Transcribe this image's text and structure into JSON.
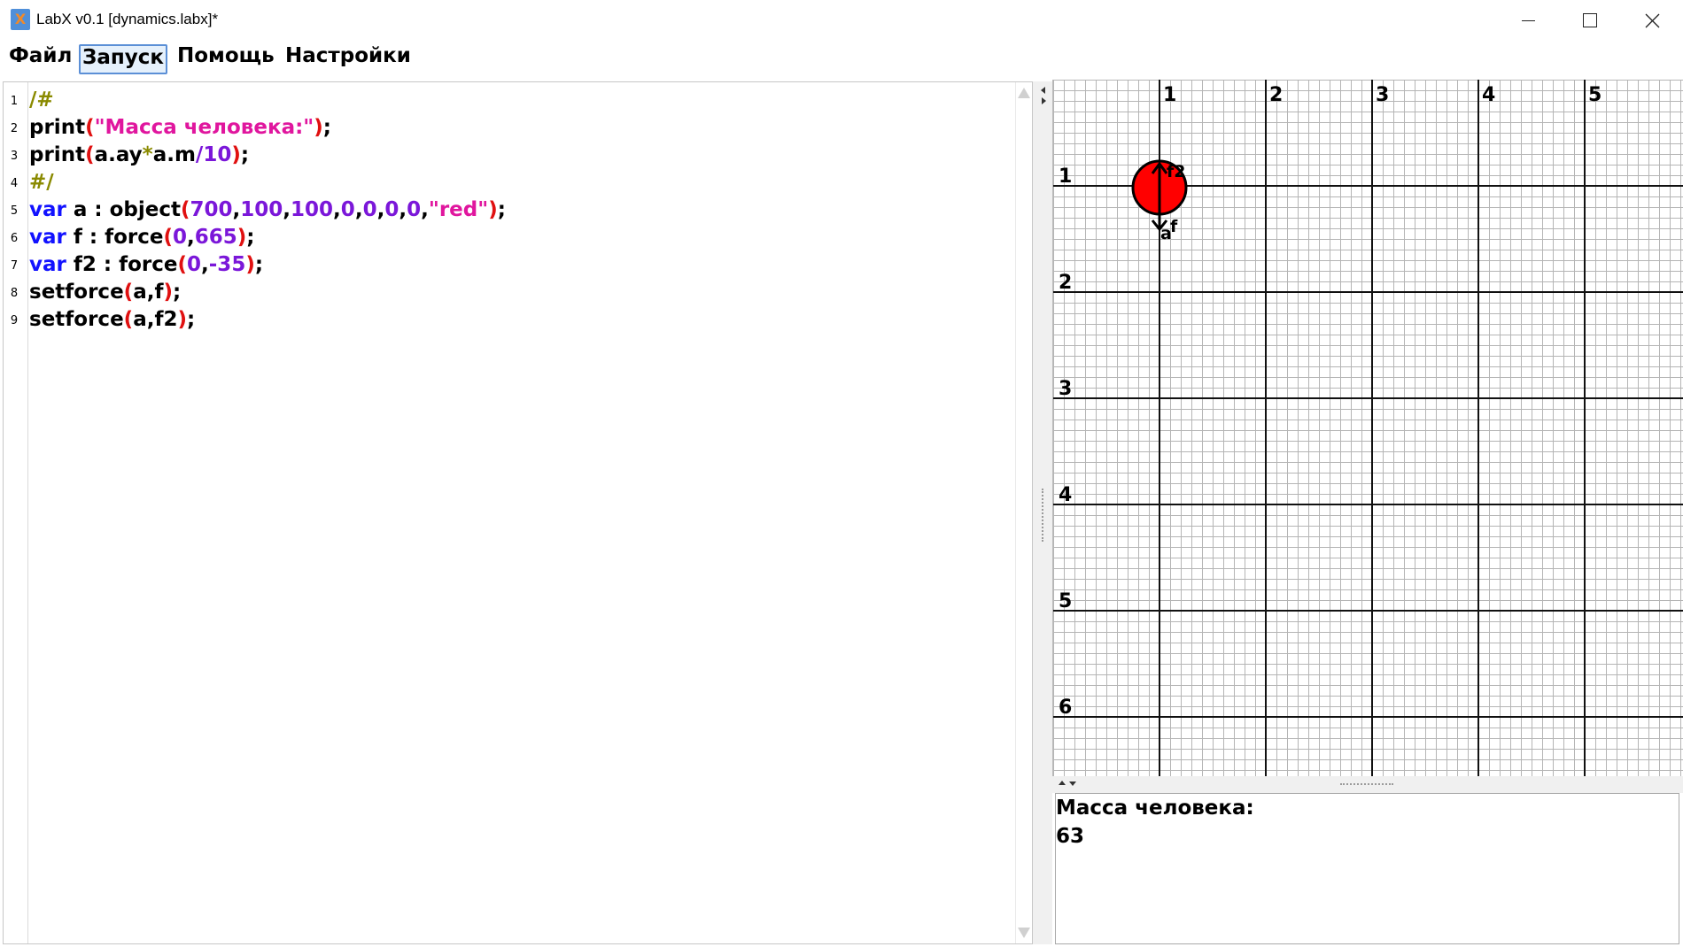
{
  "window": {
    "title": "LabX v0.1 [dynamics.labx]*",
    "icon": "labx-app-icon"
  },
  "menu": {
    "file": "Файл",
    "run": "Запуск",
    "help": "Помощь",
    "settings": "Настройки"
  },
  "editor": {
    "lines": [
      {
        "n": "1",
        "tokens": [
          {
            "t": "/#",
            "c": "cm"
          }
        ]
      },
      {
        "n": "2",
        "tokens": [
          {
            "t": "print",
            "c": "id"
          },
          {
            "t": "(",
            "c": "par"
          },
          {
            "t": "\"Масса человека:\"",
            "c": "str"
          },
          {
            "t": ")",
            "c": "par"
          },
          {
            "t": ";",
            "c": "pun"
          }
        ]
      },
      {
        "n": "3",
        "tokens": [
          {
            "t": "print",
            "c": "id"
          },
          {
            "t": "(",
            "c": "par"
          },
          {
            "t": "a.ay",
            "c": "id"
          },
          {
            "t": "*",
            "c": "cm"
          },
          {
            "t": "a.m",
            "c": "id"
          },
          {
            "t": "/",
            "c": "num"
          },
          {
            "t": "10",
            "c": "num"
          },
          {
            "t": ")",
            "c": "par"
          },
          {
            "t": ";",
            "c": "pun"
          }
        ]
      },
      {
        "n": "4",
        "tokens": [
          {
            "t": "#/",
            "c": "cm"
          }
        ]
      },
      {
        "n": "5",
        "tokens": [
          {
            "t": "var",
            "c": "kw"
          },
          {
            "t": " a : object",
            "c": "id"
          },
          {
            "t": "(",
            "c": "par"
          },
          {
            "t": "700",
            "c": "num"
          },
          {
            "t": ",",
            "c": "pun"
          },
          {
            "t": "100",
            "c": "num"
          },
          {
            "t": ",",
            "c": "pun"
          },
          {
            "t": "100",
            "c": "num"
          },
          {
            "t": ",",
            "c": "pun"
          },
          {
            "t": "0",
            "c": "num"
          },
          {
            "t": ",",
            "c": "pun"
          },
          {
            "t": "0",
            "c": "num"
          },
          {
            "t": ",",
            "c": "pun"
          },
          {
            "t": "0",
            "c": "num"
          },
          {
            "t": ",",
            "c": "pun"
          },
          {
            "t": "0",
            "c": "num"
          },
          {
            "t": ",",
            "c": "pun"
          },
          {
            "t": "\"red\"",
            "c": "str"
          },
          {
            "t": ")",
            "c": "par"
          },
          {
            "t": ";",
            "c": "pun"
          }
        ]
      },
      {
        "n": "6",
        "tokens": [
          {
            "t": "var",
            "c": "kw"
          },
          {
            "t": " f : force",
            "c": "id"
          },
          {
            "t": "(",
            "c": "par"
          },
          {
            "t": "0",
            "c": "num"
          },
          {
            "t": ",",
            "c": "pun"
          },
          {
            "t": "665",
            "c": "num"
          },
          {
            "t": ")",
            "c": "par"
          },
          {
            "t": ";",
            "c": "pun"
          }
        ]
      },
      {
        "n": "7",
        "tokens": [
          {
            "t": "var",
            "c": "kw"
          },
          {
            "t": " f2 : force",
            "c": "id"
          },
          {
            "t": "(",
            "c": "par"
          },
          {
            "t": "0",
            "c": "num"
          },
          {
            "t": ",",
            "c": "pun"
          },
          {
            "t": "-35",
            "c": "num"
          },
          {
            "t": ")",
            "c": "par"
          },
          {
            "t": ";",
            "c": "pun"
          }
        ]
      },
      {
        "n": "8",
        "tokens": [
          {
            "t": "setforce",
            "c": "id"
          },
          {
            "t": "(",
            "c": "par"
          },
          {
            "t": "a,f",
            "c": "id"
          },
          {
            "t": ")",
            "c": "par"
          },
          {
            "t": ";",
            "c": "pun"
          }
        ]
      },
      {
        "n": "9",
        "tokens": [
          {
            "t": "setforce",
            "c": "id"
          },
          {
            "t": "(",
            "c": "par"
          },
          {
            "t": "a,f2",
            "c": "id"
          },
          {
            "t": ")",
            "c": "par"
          },
          {
            "t": ";",
            "c": "pun"
          }
        ]
      }
    ]
  },
  "canvas": {
    "x_labels": [
      "1",
      "2",
      "3",
      "4",
      "5"
    ],
    "y_labels": [
      "1",
      "2",
      "3",
      "4",
      "5",
      "6"
    ],
    "object": {
      "color": "#ff0000",
      "grid_x": 1,
      "grid_y": 1
    },
    "vectors": [
      {
        "label": "f2",
        "direction": "up"
      },
      {
        "label": "f",
        "direction": "down"
      },
      {
        "label": "a",
        "direction": "down"
      }
    ]
  },
  "output": {
    "lines": [
      "Масса человека:",
      "63"
    ]
  }
}
